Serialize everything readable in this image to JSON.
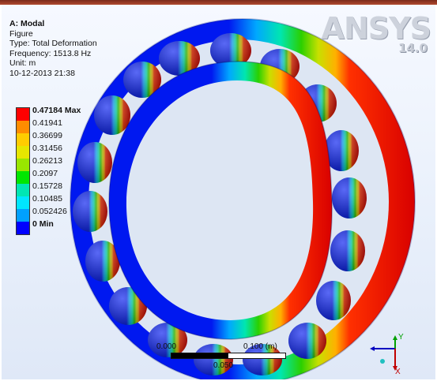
{
  "result": {
    "title": "A: Modal",
    "object": "Figure",
    "type": "Type: Total Deformation",
    "frequency": "Frequency: 1513.8 Hz",
    "unit": "Unit: m",
    "date": "10-12-2013 21:38"
  },
  "logo": {
    "brand": "ANSYS",
    "version": "14.0"
  },
  "legend": {
    "entries": [
      {
        "label": "0.47184 Max",
        "color": "#ff0000",
        "highlight": true
      },
      {
        "label": "0.41941",
        "color": "#ff8c00",
        "highlight": false
      },
      {
        "label": "0.36699",
        "color": "#ffcc00",
        "highlight": false
      },
      {
        "label": "0.31456",
        "color": "#e6e600",
        "highlight": false
      },
      {
        "label": "0.26213",
        "color": "#99e600",
        "highlight": false
      },
      {
        "label": "0.2097",
        "color": "#00e600",
        "highlight": false
      },
      {
        "label": "0.15728",
        "color": "#00e6b3",
        "highlight": false
      },
      {
        "label": "0.10485",
        "color": "#00e6ff",
        "highlight": false
      },
      {
        "label": "0.052426",
        "color": "#00a0ff",
        "highlight": false
      },
      {
        "label": "0 Min",
        "color": "#0000ff",
        "highlight": true
      }
    ]
  },
  "scale": {
    "left": "0.000",
    "right": "0.100 (m)",
    "mid": "0.050"
  },
  "triad": {
    "y": "Y",
    "x": "X"
  }
}
